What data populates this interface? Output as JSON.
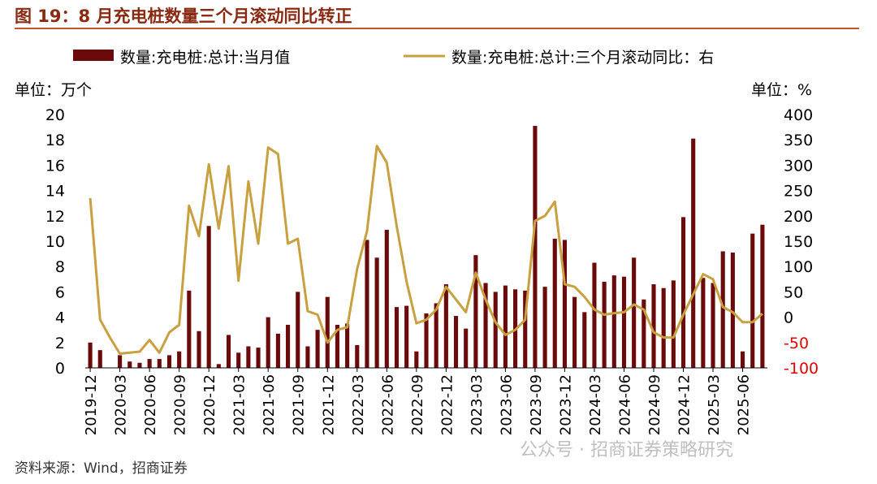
{
  "header": {
    "title": "图 19：8 月充电桩数量三个月滚动同比转正"
  },
  "footer": {
    "source": "资料来源：Wind，招商证券"
  },
  "watermark": "公众号 · 招商证券策略研究",
  "colors": {
    "bar": "#6B0A0A",
    "line": "#C8A040",
    "title": "#8B2A12",
    "negative_tick": "#E00000"
  },
  "chart_data": {
    "type": "bar",
    "left_unit": "单位：万个",
    "right_unit": "单位：%",
    "legend": {
      "bar": "数量:充电桩:总计:当月值",
      "line": "数量:充电桩:总计:三个月滚动同比：右"
    },
    "ylim_left": [
      0,
      20
    ],
    "ylim_right": [
      -100,
      400
    ],
    "yticks_left": [
      "20",
      "18",
      "16",
      "14",
      "12",
      "10",
      "8",
      "6",
      "4",
      "2",
      "0"
    ],
    "yticks_right": [
      "400",
      "350",
      "300",
      "250",
      "200",
      "150",
      "100",
      "50",
      "0",
      "-50",
      "-100"
    ],
    "x_tick_labels": [
      "2019-12",
      "2020-03",
      "2020-06",
      "2020-09",
      "2020-12",
      "2021-03",
      "2021-06",
      "2021-09",
      "2021-12",
      "2022-03",
      "2022-06",
      "2022-09",
      "2022-12",
      "2023-03",
      "2023-06",
      "2023-09",
      "2023-12",
      "2024-03",
      "2024-06",
      "2024-09",
      "2024-12",
      "2025-03",
      "2025-06"
    ],
    "months": [
      "2019-12",
      "2020-01",
      "2020-02",
      "2020-03",
      "2020-04",
      "2020-05",
      "2020-06",
      "2020-07",
      "2020-08",
      "2020-09",
      "2020-10",
      "2020-11",
      "2020-12",
      "2021-01",
      "2021-02",
      "2021-03",
      "2021-04",
      "2021-05",
      "2021-06",
      "2021-07",
      "2021-08",
      "2021-09",
      "2021-10",
      "2021-11",
      "2021-12",
      "2022-01",
      "2022-02",
      "2022-03",
      "2022-04",
      "2022-05",
      "2022-06",
      "2022-07",
      "2022-08",
      "2022-09",
      "2022-10",
      "2022-11",
      "2022-12",
      "2023-01",
      "2023-02",
      "2023-03",
      "2023-04",
      "2023-05",
      "2023-06",
      "2023-07",
      "2023-08",
      "2023-09",
      "2023-10",
      "2023-11",
      "2023-12",
      "2024-01",
      "2024-02",
      "2024-03",
      "2024-04",
      "2024-05",
      "2024-06",
      "2024-07",
      "2024-08",
      "2024-09",
      "2024-10",
      "2024-11",
      "2024-12",
      "2025-01",
      "2025-02",
      "2025-03",
      "2025-04",
      "2025-05",
      "2025-06",
      "2025-07",
      "2025-08"
    ],
    "series": [
      {
        "name": "数量:充电桩:总计:当月值",
        "axis": "left",
        "values": [
          2.0,
          1.4,
          0.0,
          1.0,
          0.5,
          0.4,
          0.7,
          0.7,
          1.0,
          1.3,
          6.1,
          2.9,
          11.2,
          0.3,
          2.6,
          1.2,
          1.7,
          1.6,
          4.0,
          2.7,
          3.4,
          6.0,
          1.7,
          3.0,
          5.6,
          3.4,
          3.5,
          1.8,
          10.1,
          8.7,
          10.9,
          4.8,
          4.9,
          1.3,
          4.3,
          5.1,
          6.6,
          4.1,
          3.1,
          8.9,
          6.7,
          6.0,
          6.5,
          6.2,
          6.1,
          19.1,
          6.4,
          10.2,
          10.1,
          5.6,
          4.4,
          8.3,
          6.8,
          7.3,
          7.2,
          8.7,
          5.4,
          6.6,
          6.3,
          6.9,
          11.9,
          18.1,
          7.1,
          6.7,
          9.2,
          9.1,
          1.3,
          10.6,
          11.3
        ]
      },
      {
        "name": "数量:充电桩:总计:三个月滚动同比：右",
        "axis": "right",
        "values": [
          235,
          -5,
          -40,
          -72,
          -70,
          -68,
          -45,
          -70,
          -30,
          -15,
          220,
          160,
          302,
          175,
          298,
          72,
          268,
          145,
          335,
          322,
          145,
          155,
          12,
          5,
          -50,
          -25,
          -20,
          95,
          170,
          338,
          305,
          180,
          70,
          -12,
          -5,
          15,
          60,
          35,
          10,
          88,
          35,
          -10,
          -35,
          -25,
          -5,
          190,
          200,
          228,
          65,
          60,
          40,
          15,
          5,
          8,
          10,
          25,
          15,
          -30,
          -40,
          -40,
          5,
          45,
          85,
          75,
          20,
          10,
          -10,
          -10,
          7
        ]
      }
    ]
  }
}
